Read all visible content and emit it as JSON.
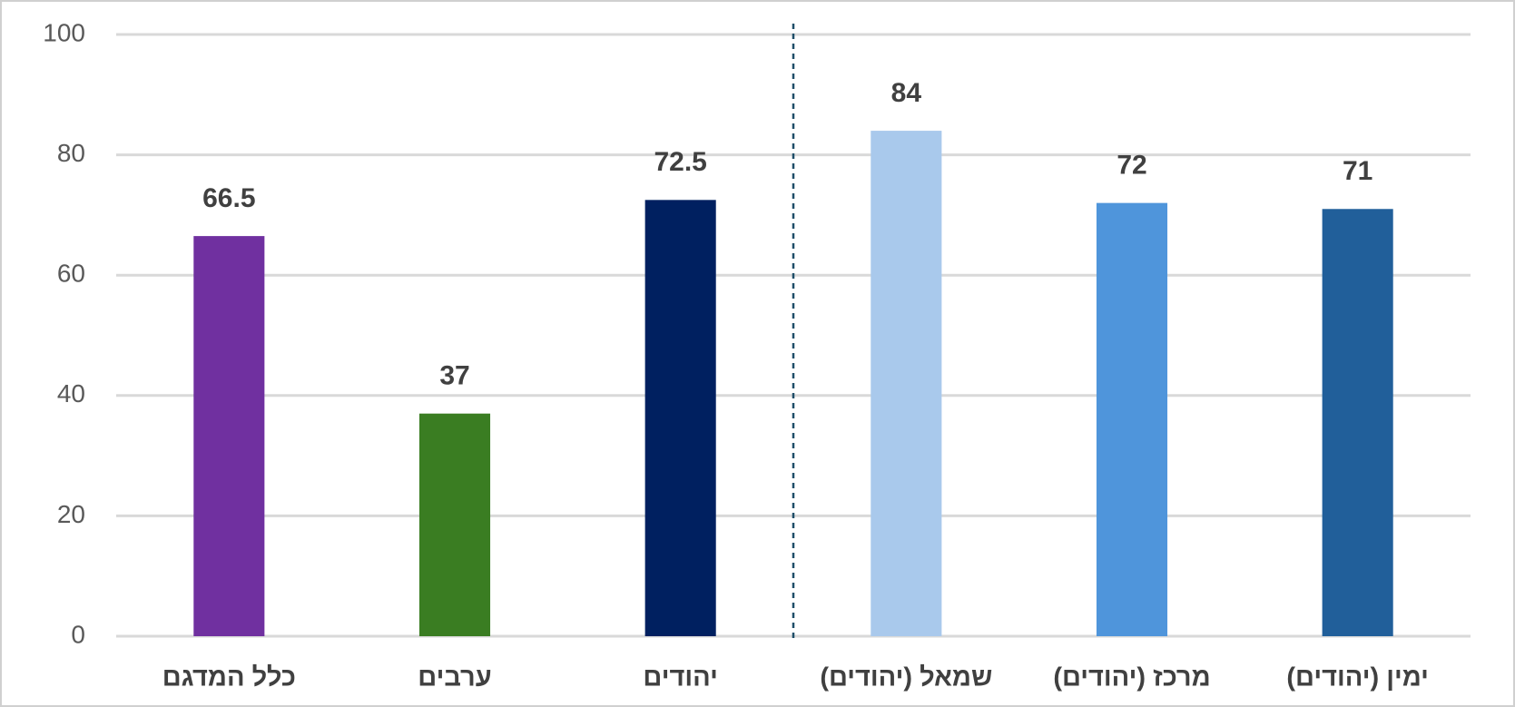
{
  "chart_data": {
    "type": "bar",
    "categories": [
      "כלל המדגם",
      "ערבים",
      "יהודים",
      "שמאל (יהודים)",
      "מרכז (יהודים)",
      "ימין (יהודים)"
    ],
    "values": [
      66.5,
      37,
      72.5,
      84,
      72,
      71
    ],
    "colors": [
      "#7030a0",
      "#3a7d22",
      "#002060",
      "#a9c9ec",
      "#4f95db",
      "#215f9a"
    ],
    "ylim": [
      0,
      100
    ],
    "yticks": [
      0,
      20,
      40,
      60,
      80,
      100
    ],
    "grid": true
  }
}
